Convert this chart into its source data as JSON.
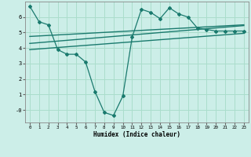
{
  "background_color": "#cceee8",
  "grid_color": "#aaddcc",
  "line_color": "#1a7a6e",
  "xlabel": "Humidex (Indice chaleur)",
  "xlim": [
    -0.5,
    23.5
  ],
  "ylim": [
    -0.8,
    7.0
  ],
  "yticks": [
    0,
    1,
    2,
    3,
    4,
    5,
    6
  ],
  "xticks": [
    0,
    1,
    2,
    3,
    4,
    5,
    6,
    7,
    8,
    9,
    10,
    11,
    12,
    13,
    14,
    15,
    16,
    17,
    18,
    19,
    20,
    21,
    22,
    23
  ],
  "line1_x": [
    0,
    1,
    2,
    3,
    4,
    5,
    6,
    7,
    8,
    9,
    10,
    11,
    12,
    13,
    14,
    15,
    16,
    17,
    18,
    19,
    20,
    21,
    22,
    23
  ],
  "line1_y": [
    6.7,
    5.7,
    5.5,
    3.9,
    3.6,
    3.6,
    3.1,
    1.2,
    -0.15,
    -0.35,
    0.9,
    4.7,
    6.5,
    6.3,
    5.9,
    6.6,
    6.2,
    6.0,
    5.3,
    5.2,
    5.1,
    5.1,
    5.1,
    5.1
  ],
  "line2_x": [
    0,
    23
  ],
  "line2_y": [
    3.9,
    4.95
  ],
  "line3_x": [
    0,
    23
  ],
  "line3_y": [
    4.3,
    5.45
  ],
  "line4_x": [
    0,
    23
  ],
  "line4_y": [
    4.75,
    5.5
  ]
}
